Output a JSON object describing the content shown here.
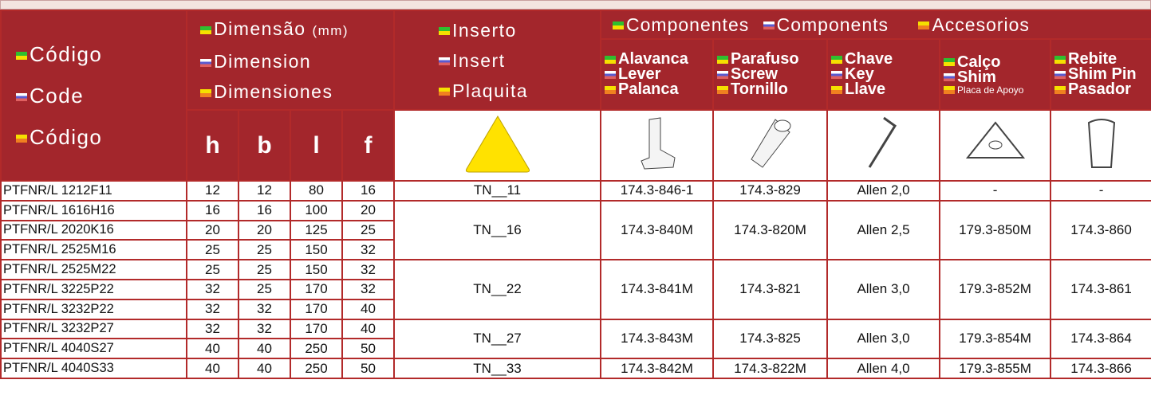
{
  "header": {
    "code": [
      "Código",
      "Code",
      "Código"
    ],
    "dimension": {
      "pt": "Dimensão",
      "unit": "(mm)",
      "en": "Dimension",
      "es": "Dimensiones"
    },
    "insert": [
      "Inserto",
      "Insert",
      "Plaquita"
    ],
    "components": [
      "Componentes",
      "Components",
      "Accesorios"
    ],
    "dims": [
      "h",
      "b",
      "l",
      "f"
    ],
    "component_columns": [
      [
        "Alavanca",
        "Lever",
        "Palanca"
      ],
      [
        "Parafuso",
        "Screw",
        "Tornillo"
      ],
      [
        "Chave",
        "Key",
        "Llave"
      ],
      [
        "Calço",
        "Shim",
        "Placa de Apoyo"
      ],
      [
        "Rebite",
        "Shim Pin",
        "Pasador"
      ]
    ]
  },
  "groups": [
    {
      "insert": "TN__11",
      "components": [
        "174.3-846-1",
        "174.3-829",
        "Allen 2,0",
        "-",
        "-"
      ],
      "items": [
        {
          "code": "PTFNR/L 1212F11",
          "dims": [
            12,
            12,
            80,
            16
          ]
        }
      ]
    },
    {
      "insert": "TN__16",
      "components": [
        "174.3-840M",
        "174.3-820M",
        "Allen 2,5",
        "179.3-850M",
        "174.3-860"
      ],
      "items": [
        {
          "code": "PTFNR/L 1616H16",
          "dims": [
            16,
            16,
            100,
            20
          ]
        },
        {
          "code": "PTFNR/L 2020K16",
          "dims": [
            20,
            20,
            125,
            25
          ]
        },
        {
          "code": "PTFNR/L 2525M16",
          "dims": [
            25,
            25,
            150,
            32
          ]
        }
      ]
    },
    {
      "insert": "TN__22",
      "components": [
        "174.3-841M",
        "174.3-821",
        "Allen 3,0",
        "179.3-852M",
        "174.3-861"
      ],
      "items": [
        {
          "code": "PTFNR/L 2525M22",
          "dims": [
            25,
            25,
            150,
            32
          ]
        },
        {
          "code": "PTFNR/L 3225P22",
          "dims": [
            32,
            25,
            170,
            32
          ]
        },
        {
          "code": "PTFNR/L 3232P22",
          "dims": [
            32,
            32,
            170,
            40
          ]
        }
      ]
    },
    {
      "insert": "TN__27",
      "components": [
        "174.3-843M",
        "174.3-825",
        "Allen 3,0",
        "179.3-854M",
        "174.3-864"
      ],
      "items": [
        {
          "code": "PTFNR/L 3232P27",
          "dims": [
            32,
            32,
            170,
            40
          ]
        },
        {
          "code": "PTFNR/L 4040S27",
          "dims": [
            40,
            40,
            250,
            50
          ]
        }
      ]
    },
    {
      "insert": "TN__33",
      "components": [
        "174.3-842M",
        "174.3-822M",
        "Allen 4,0",
        "179.3-855M",
        "174.3-866"
      ],
      "items": [
        {
          "code": "PTFNR/L 4040S33",
          "dims": [
            40,
            40,
            250,
            50
          ]
        }
      ]
    }
  ]
}
